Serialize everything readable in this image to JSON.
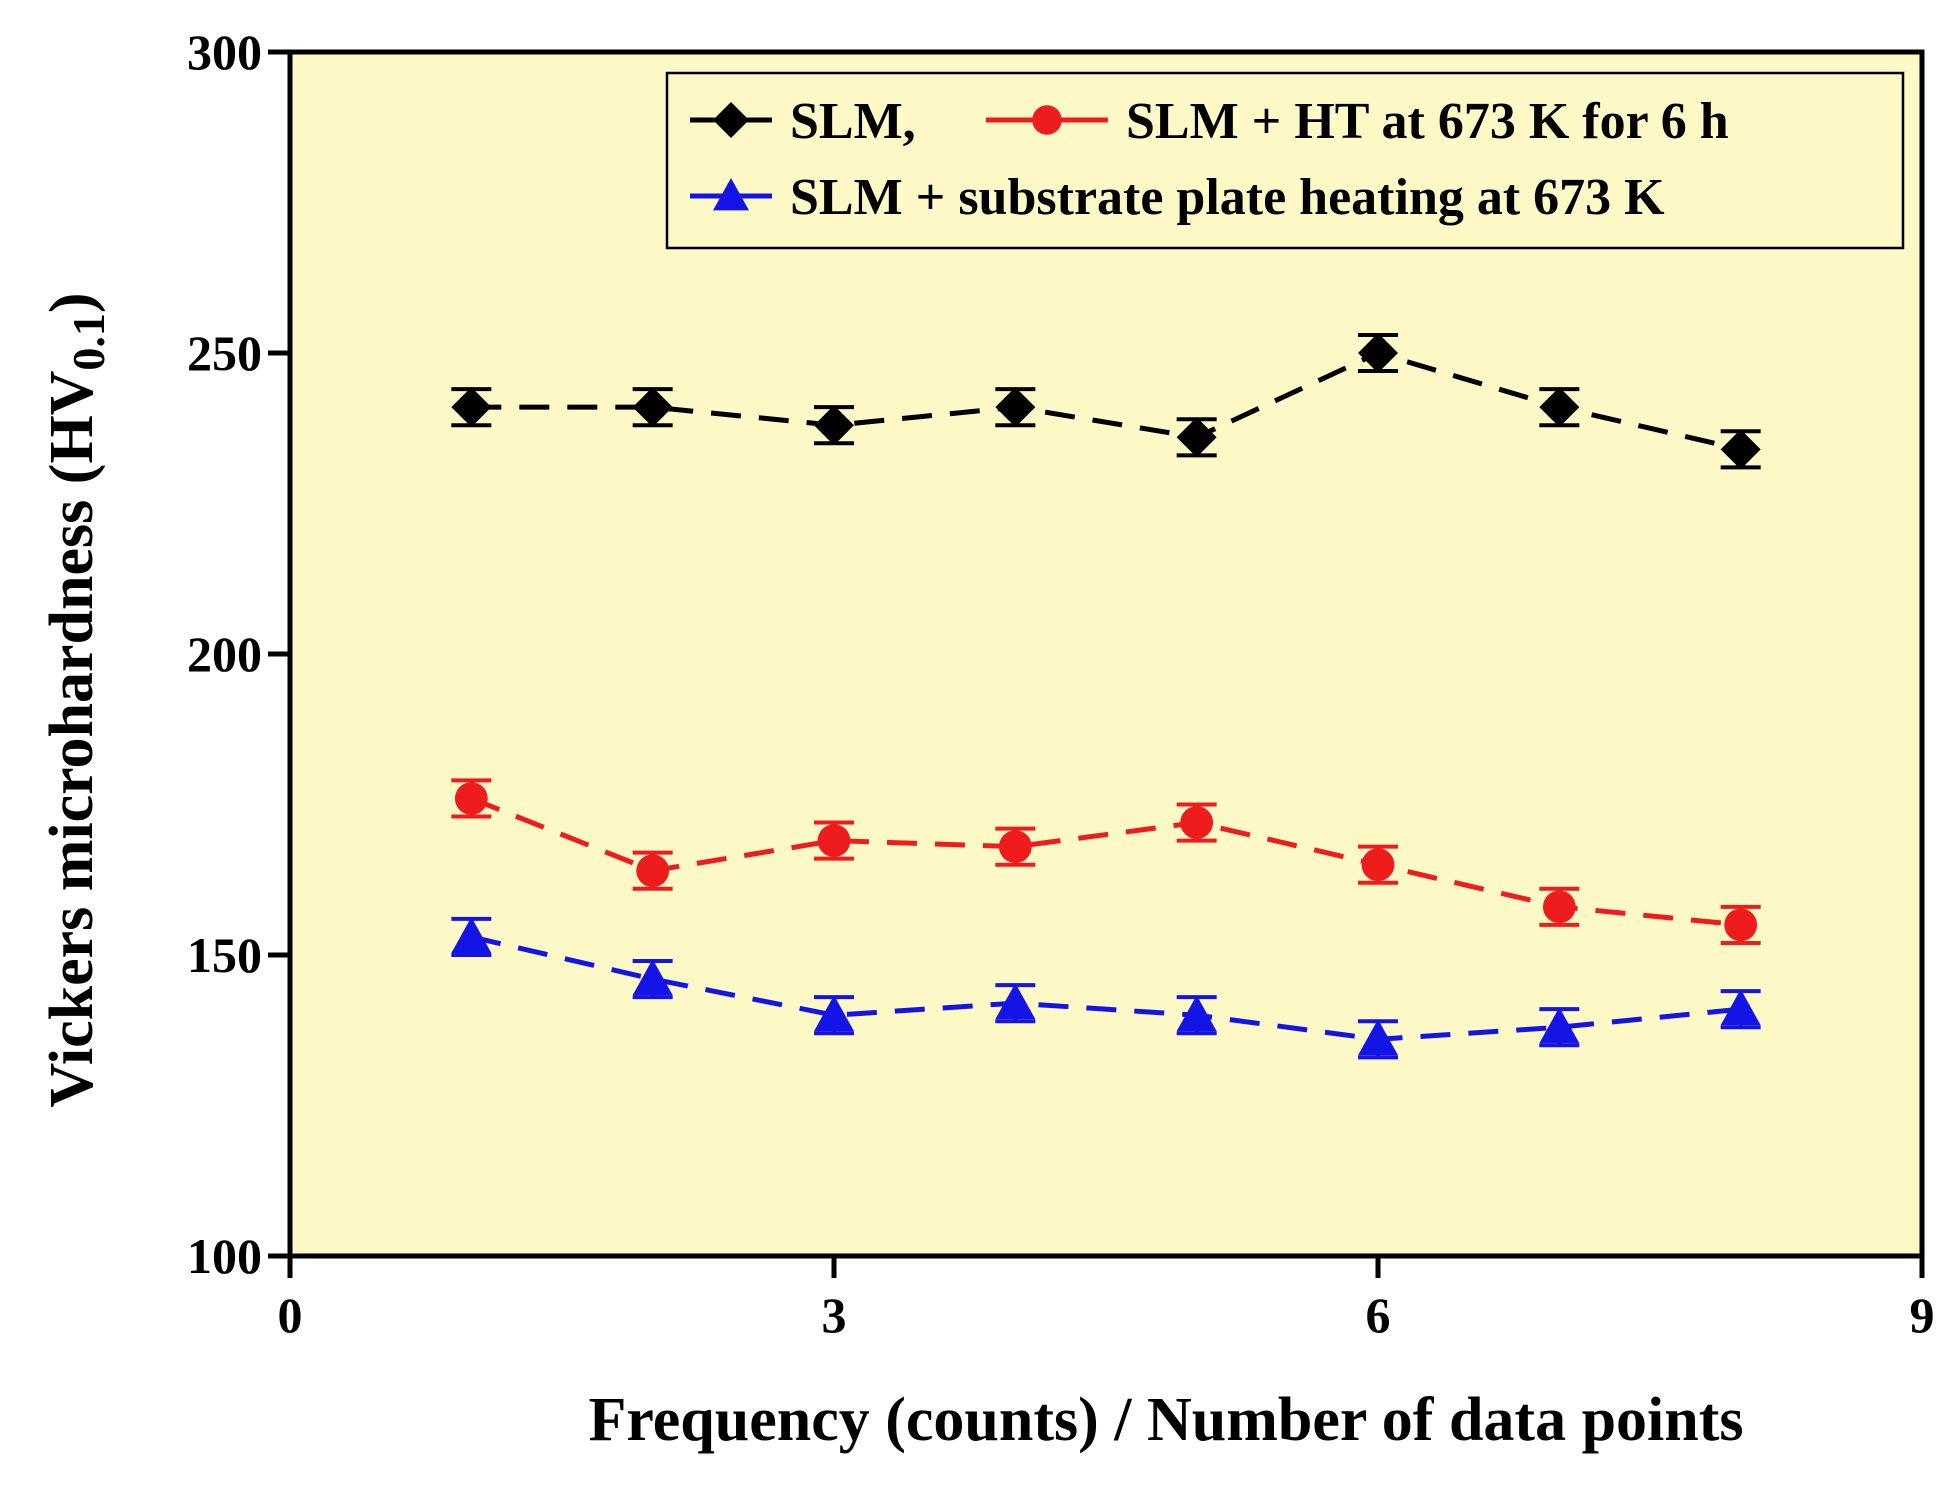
{
  "chart_data": {
    "type": "line",
    "title": "",
    "xlabel": "Frequency (counts) / Number of data points",
    "ylabel_main": "Vickers microhardness (HV",
    "ylabel_sub": "0.1",
    "ylabel_close": ")",
    "xlim": [
      0,
      9
    ],
    "ylim": [
      100,
      300
    ],
    "xticks": [
      0,
      3,
      6,
      9
    ],
    "yticks": [
      100,
      150,
      200,
      250,
      300
    ],
    "grid": false,
    "background": "#fcf9c6",
    "legend_position": "top-right",
    "x": [
      1,
      2,
      3,
      4,
      5,
      6,
      7,
      8
    ],
    "series": [
      {
        "name": "SLM",
        "legend_label": "SLM,",
        "color": "#000000",
        "marker": "diamond",
        "values": [
          241,
          241,
          238,
          241,
          236,
          250,
          241,
          234
        ],
        "errors": [
          3,
          3,
          3,
          3,
          3,
          3,
          3,
          3
        ]
      },
      {
        "name": "SLM + HT at 673 K for 6 h",
        "legend_label": "SLM + HT at 673 K for 6 h",
        "color": "#ee1c1c",
        "marker": "circle",
        "values": [
          176,
          164,
          169,
          168,
          172,
          165,
          158,
          155
        ],
        "errors": [
          3,
          3,
          3,
          3,
          3,
          3,
          3,
          3
        ]
      },
      {
        "name": "SLM + substrate plate heating at 673 K",
        "legend_label": "SLM + substrate plate heating at 673 K",
        "color": "#1414e6",
        "marker": "triangle",
        "values": [
          153,
          146,
          140,
          142,
          140,
          136,
          138,
          141
        ],
        "errors": [
          3,
          3,
          3,
          3,
          3,
          3,
          3,
          3
        ]
      }
    ]
  }
}
